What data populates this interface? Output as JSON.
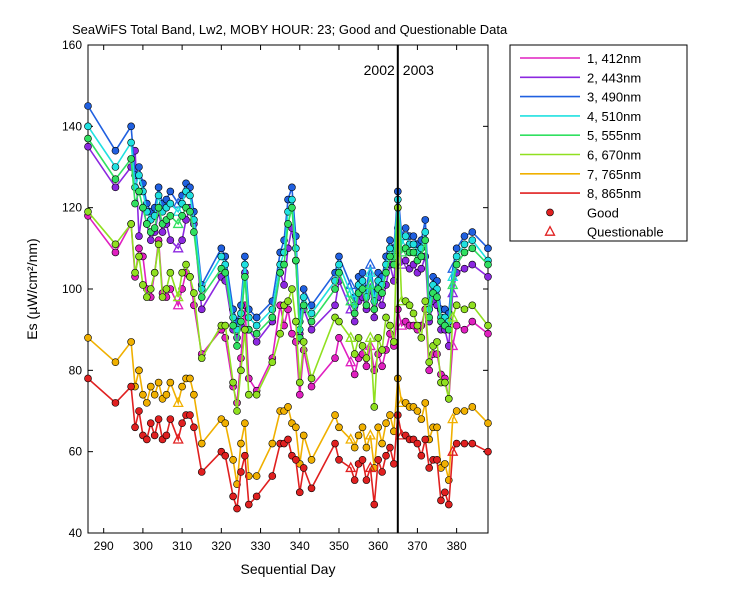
{
  "chart_data": {
    "type": "line",
    "title": "SeaWiFS Total Band,  Lw2, MOBY HOUR: 23;  Good and Questionable Data",
    "xlabel": "Sequential Day",
    "ylabel": "Es (µW/cm²/nm)",
    "xlim": [
      286,
      388
    ],
    "ylim": [
      40,
      160
    ],
    "xticks": [
      290,
      300,
      310,
      320,
      330,
      340,
      350,
      360,
      370,
      380
    ],
    "yticks": [
      40,
      60,
      80,
      100,
      120,
      140,
      160
    ],
    "grid": false,
    "legend_position": "outside-right",
    "year_divider": {
      "x": 365,
      "left_label": "2002",
      "right_label": "2003"
    },
    "x": [
      286,
      293,
      297,
      298,
      299,
      300,
      301,
      302,
      303,
      304,
      305,
      306,
      307,
      309,
      310,
      311,
      312,
      313,
      315,
      320,
      321,
      323,
      324,
      325,
      326,
      327,
      329,
      333,
      335,
      336,
      337,
      338,
      339,
      340,
      341,
      343,
      349,
      350,
      353,
      354,
      355,
      356,
      357,
      358,
      359,
      360,
      361,
      362,
      363,
      364,
      365,
      366,
      367,
      368,
      369,
      370,
      371,
      372,
      373,
      374,
      375,
      376,
      377,
      378,
      379,
      380,
      382,
      384,
      388
    ],
    "series": [
      {
        "name": "1, 412nm",
        "color": "#e020c0",
        "values": [
          118,
          109,
          116,
          103,
          110,
          108,
          100,
          98,
          104,
          112,
          99,
          98,
          100,
          96,
          100,
          104,
          103,
          96,
          84,
          90,
          88,
          76,
          72,
          83,
          96,
          78,
          75,
          83,
          96,
          91,
          95,
          89,
          87,
          74,
          85,
          76,
          83,
          88,
          82,
          79,
          83,
          84,
          81,
          86,
          80,
          84,
          81,
          85,
          89,
          86,
          95,
          91,
          92,
          91,
          91,
          90,
          91,
          95,
          80,
          84,
          84,
          79,
          78,
          73,
          86,
          91,
          90,
          92,
          89
        ]
      },
      {
        "name": "2, 443nm",
        "color": "#8c28e0",
        "values": [
          135,
          125,
          130,
          134,
          113,
          120,
          116,
          112,
          114,
          119,
          114,
          116,
          112,
          110,
          112,
          117,
          120,
          116,
          95,
          103,
          102,
          90,
          88,
          91,
          104,
          90,
          87,
          92,
          104,
          101,
          110,
          115,
          107,
          89,
          95,
          90,
          96,
          102,
          95,
          92,
          97,
          98,
          95,
          100,
          93,
          98,
          96,
          101,
          106,
          102,
          115,
          106,
          107,
          105,
          106,
          104,
          105,
          108,
          92,
          97,
          96,
          90,
          90,
          86,
          99,
          104,
          105,
          106,
          103
        ]
      },
      {
        "name": "3, 490nm",
        "color": "#2060e0",
        "values": [
          145,
          134,
          140,
          128,
          130,
          126,
          121,
          119,
          120,
          125,
          121,
          122,
          124,
          121,
          123,
          126,
          125,
          119,
          101,
          110,
          108,
          95,
          92,
          96,
          108,
          95,
          93,
          97,
          109,
          112,
          122,
          125,
          113,
          92,
          100,
          96,
          104,
          108,
          101,
          98,
          103,
          104,
          100,
          106,
          99,
          104,
          103,
          108,
          112,
          110,
          124,
          113,
          115,
          113,
          113,
          111,
          112,
          117,
          97,
          103,
          102,
          95,
          95,
          94,
          105,
          110,
          113,
          114,
          110
        ]
      },
      {
        "name": "4, 510nm",
        "color": "#20e0e0",
        "values": [
          140,
          130,
          136,
          125,
          128,
          124,
          119,
          117,
          118,
          123,
          119,
          120,
          121,
          119,
          121,
          124,
          123,
          117,
          100,
          108,
          106,
          93,
          90,
          94,
          106,
          93,
          91,
          95,
          106,
          109,
          119,
          122,
          110,
          90,
          98,
          94,
          102,
          106,
          99,
          96,
          101,
          102,
          98,
          104,
          97,
          102,
          101,
          106,
          110,
          108,
          122,
          111,
          113,
          111,
          111,
          109,
          110,
          114,
          95,
          101,
          100,
          93,
          93,
          92,
          103,
          108,
          111,
          112,
          107
        ]
      },
      {
        "name": "5, 555nm",
        "color": "#30e060",
        "values": [
          137,
          127,
          132,
          121,
          124,
          120,
          116,
          114,
          115,
          120,
          116,
          117,
          118,
          116,
          118,
          120,
          119,
          114,
          98,
          105,
          104,
          91,
          86,
          92,
          103,
          90,
          89,
          93,
          104,
          106,
          116,
          120,
          107,
          88,
          96,
          92,
          100,
          104,
          97,
          94,
          99,
          100,
          96,
          101,
          95,
          100,
          99,
          104,
          108,
          106,
          120,
          109,
          110,
          109,
          109,
          107,
          108,
          112,
          93,
          99,
          98,
          92,
          91,
          90,
          101,
          106,
          109,
          110,
          106
        ]
      },
      {
        "name": "6, 670nm",
        "color": "#90e020",
        "values": [
          119,
          111,
          116,
          104,
          108,
          101,
          98,
          100,
          104,
          111,
          98,
          100,
          104,
          98,
          104,
          106,
          103,
          99,
          83,
          91,
          91,
          77,
          70,
          80,
          90,
          74,
          74,
          82,
          89,
          96,
          97,
          100,
          92,
          77,
          87,
          78,
          93,
          92,
          88,
          84,
          88,
          86,
          83,
          88,
          71,
          88,
          85,
          93,
          91,
          87,
          120,
          97,
          97,
          96,
          94,
          91,
          88,
          97,
          82,
          86,
          87,
          77,
          77,
          73,
          93,
          96,
          95,
          96,
          91
        ]
      },
      {
        "name": "7, 765nm",
        "color": "#f0b000",
        "values": [
          88,
          82,
          87,
          76,
          80,
          74,
          72,
          76,
          74,
          77,
          73,
          74,
          77,
          72,
          76,
          78,
          78,
          74,
          62,
          68,
          67,
          58,
          52,
          62,
          67,
          54,
          54,
          62,
          70,
          70,
          71,
          67,
          66,
          57,
          64,
          58,
          69,
          66,
          63,
          61,
          64,
          66,
          61,
          64,
          56,
          66,
          62,
          67,
          69,
          65,
          78,
          72,
          72,
          71,
          71,
          70,
          68,
          72,
          63,
          66,
          66,
          56,
          57,
          53,
          68,
          70,
          70,
          71,
          67
        ]
      },
      {
        "name": "8, 865nm",
        "color": "#e02020",
        "values": [
          78,
          72,
          76,
          66,
          70,
          64,
          63,
          67,
          64,
          68,
          63,
          64,
          68,
          63,
          67,
          69,
          69,
          66,
          55,
          60,
          59,
          49,
          46,
          55,
          59,
          47,
          49,
          54,
          62,
          62,
          63,
          59,
          58,
          50,
          56,
          51,
          62,
          58,
          56,
          53,
          57,
          58,
          53,
          56,
          47,
          58,
          55,
          59,
          61,
          57,
          69,
          64,
          64,
          63,
          63,
          62,
          59,
          63,
          56,
          58,
          58,
          48,
          50,
          47,
          60,
          62,
          62,
          62,
          60
        ]
      }
    ],
    "questionable_x": [
      309,
      353,
      358,
      366,
      379
    ]
  }
}
